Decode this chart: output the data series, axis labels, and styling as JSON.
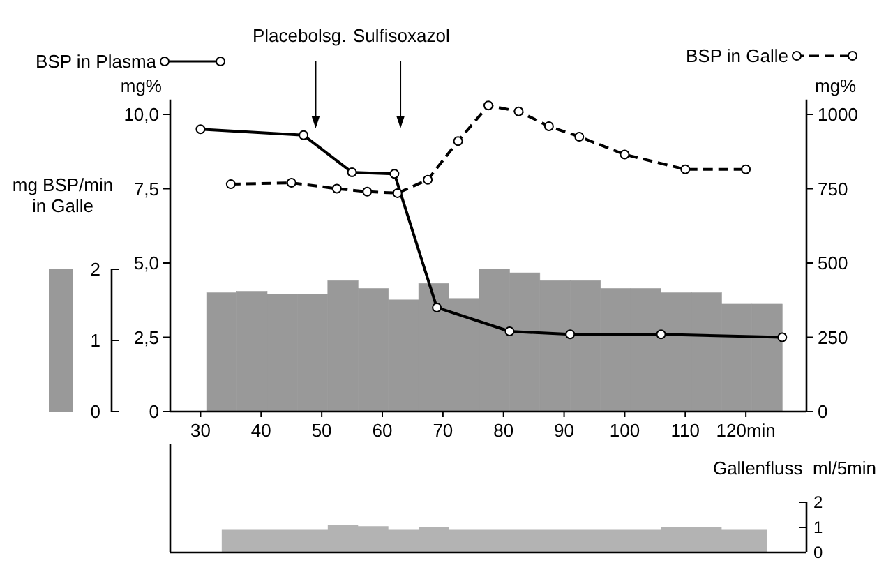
{
  "chart_data": [
    {
      "type": "bar",
      "ylabel": "mg%",
      "y2label": "mg%",
      "y3label": "mg BSP/min in Galle",
      "xlim": [
        25,
        130
      ],
      "xticks": [
        30,
        40,
        50,
        60,
        70,
        80,
        90,
        100,
        110,
        {
          "value": 120,
          "label": "120min"
        }
      ],
      "ylim": [
        0,
        10.5
      ],
      "yticks": [
        0,
        {
          "value": 2.5,
          "label": "2,5"
        },
        {
          "value": 5,
          "label": "5,0"
        },
        {
          "value": 7.5,
          "label": "7,5"
        },
        {
          "value": 10,
          "label": "10,0"
        }
      ],
      "y2lim": [
        0,
        1050
      ],
      "y2ticks": [
        0,
        250,
        500,
        750,
        1000
      ],
      "y3lim": [
        0,
        2
      ],
      "y3ticks": [
        0,
        1,
        2
      ],
      "legend": "top",
      "marker": "circle",
      "ref_lines": [
        {
          "axis": "x",
          "value": 49,
          "label": "Placebolsg."
        },
        {
          "axis": "x",
          "value": 63,
          "label": "Sulfisoxazol"
        }
      ],
      "series": [
        {
          "axis": "y3",
          "color": "#999999",
          "x": [
            33.5,
            38.5,
            43.5,
            48.5,
            53.5,
            58.5,
            63.5,
            68.5,
            73.5,
            78.5,
            83.5,
            88.5,
            93.5,
            98.5,
            103.5,
            108.5,
            113.5,
            118.5,
            123.5
          ],
          "values": [
            1.67,
            1.69,
            1.65,
            1.65,
            1.84,
            1.73,
            1.57,
            1.8,
            1.59,
            2.0,
            1.95,
            1.84,
            1.84,
            1.73,
            1.73,
            1.67,
            1.67,
            1.51,
            1.51
          ]
        },
        {
          "name": "BSP in Plasma",
          "type": "line",
          "axis": "y",
          "color": "#000000",
          "line_style": "solid",
          "x": [
            30,
            47,
            55,
            62,
            69,
            81,
            91,
            106,
            126
          ],
          "values": [
            9.5,
            9.3,
            8.05,
            8.0,
            3.5,
            2.7,
            2.6,
            2.6,
            2.5
          ]
        },
        {
          "name": "BSP in Galle",
          "type": "line",
          "axis": "y2",
          "color": "#000000",
          "line_style": "dashed",
          "x": [
            35,
            45,
            52.5,
            57.5,
            62.5,
            67.5,
            72.5,
            77.5,
            82.5,
            87.5,
            92.5,
            100,
            110,
            120
          ],
          "values": [
            765,
            770,
            750,
            740,
            735,
            780,
            910,
            1030,
            1010,
            960,
            925,
            865,
            815,
            815
          ]
        }
      ]
    },
    {
      "type": "area",
      "ylabel": "Gallenfluss  ml/5min",
      "xlim": [
        25,
        130
      ],
      "ylim": [
        0,
        2
      ],
      "yticks": [
        0,
        1,
        2
      ],
      "tick_labels": "y",
      "series": [
        {
          "color": "#b3b3b3",
          "x": [
            33.5,
            38.5,
            43.5,
            48.5,
            53.5,
            58.5,
            63.5,
            68.5,
            73.5,
            78.5,
            83.5,
            88.5,
            93.5,
            98.5,
            103.5,
            108.5,
            113.5,
            118.5,
            123.5
          ],
          "values": [
            0.9,
            0.9,
            0.9,
            0.9,
            1.1,
            1.05,
            0.9,
            1.0,
            0.9,
            0.9,
            0.9,
            0.9,
            0.9,
            0.9,
            0.9,
            1.0,
            1.0,
            0.9,
            0.9
          ]
        }
      ]
    }
  ]
}
